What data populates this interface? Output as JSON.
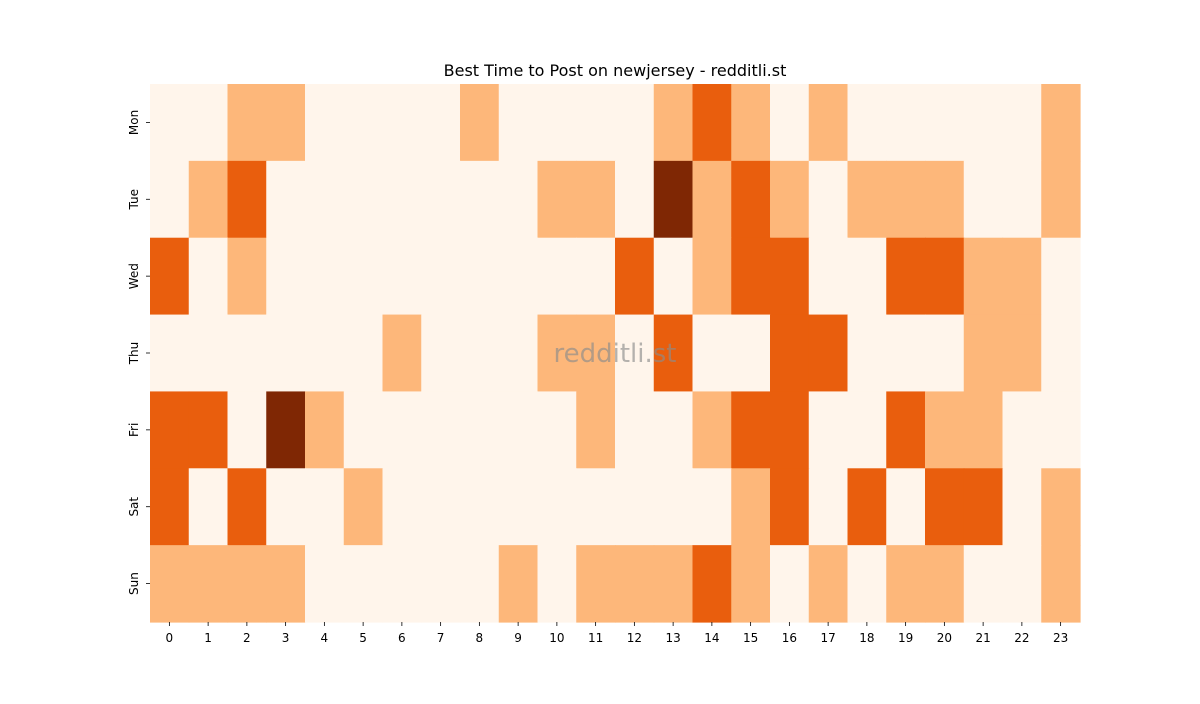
{
  "chart_data": {
    "type": "heatmap",
    "title": "Best Time to Post on newjersey - redditli.st",
    "xlabel": "",
    "ylabel": "",
    "x_categories": [
      "0",
      "1",
      "2",
      "3",
      "4",
      "5",
      "6",
      "7",
      "8",
      "9",
      "10",
      "11",
      "12",
      "13",
      "14",
      "15",
      "16",
      "17",
      "18",
      "19",
      "20",
      "21",
      "22",
      "23"
    ],
    "y_categories": [
      "Mon",
      "Tue",
      "Wed",
      "Thu",
      "Fri",
      "Sat",
      "Sun"
    ],
    "values": [
      [
        0,
        0,
        1,
        1,
        0,
        0,
        0,
        0,
        1,
        0,
        0,
        0,
        0,
        1,
        2,
        1,
        0,
        1,
        0,
        0,
        0,
        0,
        0,
        1
      ],
      [
        0,
        1,
        2,
        0,
        0,
        0,
        0,
        0,
        0,
        0,
        1,
        1,
        0,
        3,
        1,
        2,
        1,
        0,
        1,
        1,
        1,
        0,
        0,
        1
      ],
      [
        2,
        0,
        1,
        0,
        0,
        0,
        0,
        0,
        0,
        0,
        0,
        0,
        2,
        0,
        1,
        2,
        2,
        0,
        0,
        2,
        2,
        1,
        1,
        0
      ],
      [
        0,
        0,
        0,
        0,
        0,
        0,
        1,
        0,
        0,
        0,
        1,
        1,
        0,
        2,
        0,
        0,
        2,
        2,
        0,
        0,
        0,
        1,
        1,
        0
      ],
      [
        2,
        2,
        0,
        3,
        1,
        0,
        0,
        0,
        0,
        0,
        0,
        1,
        0,
        0,
        1,
        2,
        2,
        0,
        0,
        2,
        1,
        1,
        0,
        0
      ],
      [
        2,
        0,
        2,
        0,
        0,
        1,
        0,
        0,
        0,
        0,
        0,
        0,
        0,
        0,
        0,
        1,
        2,
        0,
        2,
        0,
        2,
        2,
        0,
        1
      ],
      [
        1,
        1,
        1,
        1,
        0,
        0,
        0,
        0,
        0,
        1,
        0,
        1,
        1,
        1,
        2,
        1,
        0,
        1,
        0,
        1,
        1,
        0,
        0,
        1
      ]
    ],
    "color_scale": [
      "#fff5eb",
      "#fdb77a",
      "#e95e0d",
      "#7f2704"
    ],
    "grid": false,
    "legend": "none",
    "watermark": "redditli.st"
  }
}
